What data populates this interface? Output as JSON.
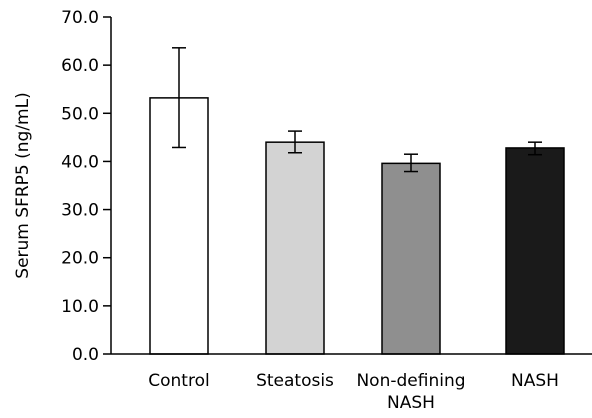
{
  "chart_data": {
    "type": "bar",
    "title": "",
    "xlabel": "",
    "ylabel": "Serum SFRP5 (ng/mL)",
    "ylim": [
      0,
      70
    ],
    "yticks": [
      "0.0",
      "10.0",
      "20.0",
      "30.0",
      "40.0",
      "50.0",
      "60.0",
      "70.0"
    ],
    "categories": [
      [
        "Control"
      ],
      [
        "Steatosis"
      ],
      [
        "Non-defining",
        "NASH"
      ],
      [
        "NASH"
      ]
    ],
    "values": [
      53.2,
      44.0,
      39.6,
      42.8
    ],
    "error_low": [
      42.9,
      41.8,
      37.9,
      41.4
    ],
    "error_high": [
      63.6,
      46.3,
      41.5,
      44.0
    ],
    "bar_colors": [
      "#ffffff",
      "#d3d3d3",
      "#8f8f8f",
      "#1a1a1a"
    ],
    "grid": false
  }
}
